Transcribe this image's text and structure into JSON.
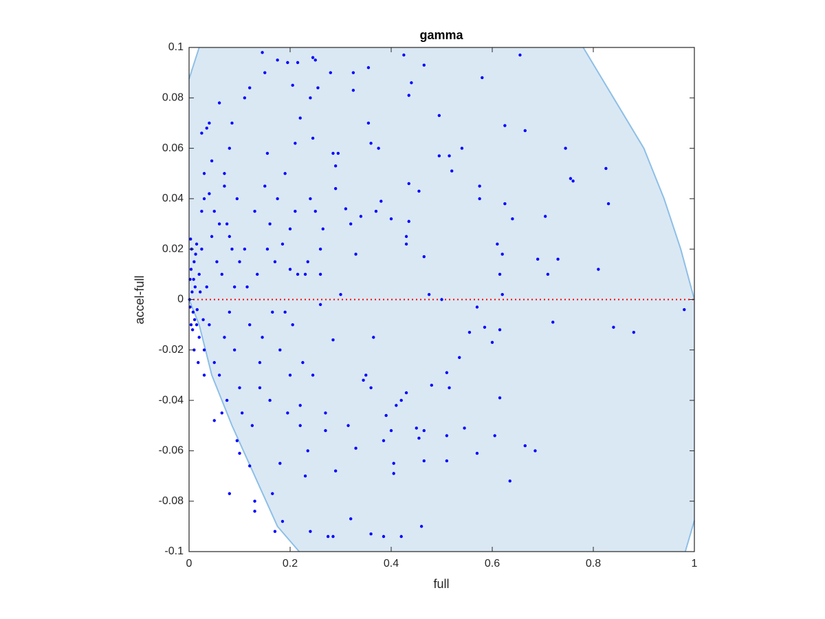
{
  "chart_data": {
    "type": "scatter",
    "title": "gamma",
    "xlabel": "full",
    "ylabel": "accel-full",
    "xlim": [
      0,
      1
    ],
    "ylim": [
      -0.1,
      0.1
    ],
    "xticks": [
      0,
      0.2,
      0.4,
      0.6,
      0.8,
      1
    ],
    "yticks": [
      -0.1,
      -0.08,
      -0.06,
      -0.04,
      -0.02,
      0,
      0.02,
      0.04,
      0.06,
      0.08,
      0.1
    ],
    "grid": false,
    "region": {
      "color": "#dae8f4",
      "edge_color": "#8dbfe6",
      "x": [
        0,
        0.02,
        0.78,
        0.84,
        0.9,
        0.94,
        0.973,
        1,
        1,
        0.982,
        0.218,
        0.175,
        0.13,
        0.085,
        0.045,
        0.02,
        0
      ],
      "y": [
        0.0875,
        0.1,
        0.1,
        0.08,
        0.06,
        0.04,
        0.02,
        0,
        -0.0877,
        -0.1,
        -0.1,
        -0.09,
        -0.07,
        -0.05,
        -0.03,
        -0.01,
        0
      ]
    },
    "reference_line": {
      "color": "#ff0000",
      "x": [
        0,
        1
      ],
      "y": [
        0,
        0
      ]
    },
    "series": [
      {
        "color": "#0000ff",
        "x": [
          0.98,
          0.88,
          0.84,
          0.81,
          0.83,
          0.825,
          0.76,
          0.755,
          0.745,
          0.73,
          0.71,
          0.705,
          0.72,
          0.69,
          0.685,
          0.665,
          0.665,
          0.655,
          0.64,
          0.635,
          0.625,
          0.625,
          0.62,
          0.615,
          0.61,
          0.62,
          0.605,
          0.615,
          0.615,
          0.6,
          0.58,
          0.575,
          0.575,
          0.57,
          0.57,
          0.585,
          0.545,
          0.555,
          0.54,
          0.52,
          0.535,
          0.515,
          0.51,
          0.515,
          0.51,
          0.51,
          0.5,
          0.495,
          0.495,
          0.48,
          0.475,
          0.465,
          0.465,
          0.465,
          0.465,
          0.46,
          0.455,
          0.455,
          0.45,
          0.44,
          0.435,
          0.435,
          0.435,
          0.43,
          0.43,
          0.425,
          0.43,
          0.42,
          0.42,
          0.41,
          0.405,
          0.405,
          0.4,
          0.4,
          0.39,
          0.385,
          0.385,
          0.38,
          0.375,
          0.37,
          0.365,
          0.36,
          0.36,
          0.36,
          0.355,
          0.35,
          0.355,
          0.345,
          0.34,
          0.33,
          0.33,
          0.325,
          0.325,
          0.32,
          0.315,
          0.32,
          0.31,
          0.3,
          0.295,
          0.29,
          0.29,
          0.285,
          0.28,
          0.275,
          0.285,
          0.29,
          0.285,
          0.27,
          0.27,
          0.265,
          0.26,
          0.26,
          0.25,
          0.255,
          0.245,
          0.245,
          0.24,
          0.24,
          0.24,
          0.235,
          0.23,
          0.22,
          0.22,
          0.215,
          0.21,
          0.205,
          0.2,
          0.2,
          0.195,
          0.19,
          0.185,
          0.18,
          0.175,
          0.17,
          0.165,
          0.16,
          0.155,
          0.15,
          0.145,
          0.14,
          0.13,
          0.13,
          0.12,
          0.12,
          0.11,
          0.1,
          0.095,
          0.08,
          0.085,
          0.08,
          0.075,
          0.07,
          0.06,
          0.05,
          0.045,
          0.04,
          0.035,
          0.03,
          0.025,
          0.03,
          0.005,
          0.01,
          0.008,
          0.012,
          0.015,
          0.02,
          0.02,
          0.025,
          0.03,
          0.035,
          0.04,
          0.045,
          0.05,
          0.055,
          0.06,
          0.065,
          0.07,
          0.075,
          0.08,
          0.085,
          0.09,
          0.095,
          0.1,
          0.11,
          0.12,
          0.13,
          0.14,
          0.15,
          0.16,
          0.17,
          0.18,
          0.19,
          0.2,
          0.21,
          0.22,
          0.23,
          0.003,
          0.004,
          0.006,
          0.002,
          0.01,
          0.015,
          0.018,
          0.025,
          0.03,
          0.04,
          0.05,
          0.06,
          0.065,
          0.07,
          0.08,
          0.09,
          0.1,
          0.105,
          0.115,
          0.125,
          0.135,
          0.145,
          0.155,
          0.165,
          0.175,
          0.185,
          0.195,
          0.205,
          0.215,
          0.225,
          0.235,
          0.245,
          0.25,
          0.26,
          0.001,
          0.002,
          0.004,
          0.007,
          0.009,
          0.011,
          0.013,
          0.016,
          0.022,
          0.028
        ],
        "values": [
          -0.004,
          -0.013,
          -0.011,
          0.012,
          0.038,
          0.052,
          0.047,
          0.048,
          0.06,
          0.016,
          0.01,
          0.033,
          -0.009,
          0.016,
          -0.06,
          -0.058,
          0.067,
          0.097,
          0.032,
          -0.072,
          0.069,
          0.038,
          0.018,
          0.01,
          0.022,
          0.002,
          -0.054,
          -0.039,
          -0.012,
          -0.017,
          0.088,
          0.045,
          0.04,
          -0.003,
          -0.061,
          -0.011,
          -0.051,
          -0.013,
          0.06,
          0.051,
          -0.023,
          0.057,
          -0.029,
          -0.035,
          -0.054,
          -0.064,
          0,
          0.073,
          0.057,
          -0.034,
          0.002,
          0.093,
          0.017,
          -0.052,
          -0.064,
          -0.09,
          0.043,
          -0.055,
          -0.051,
          0.086,
          0.081,
          0.046,
          0.031,
          0.022,
          0.025,
          0.097,
          -0.037,
          -0.04,
          -0.094,
          -0.042,
          -0.065,
          -0.069,
          0.032,
          -0.052,
          -0.046,
          -0.056,
          -0.094,
          0.039,
          0.06,
          0.035,
          -0.015,
          -0.035,
          0.062,
          -0.093,
          0.07,
          -0.03,
          0.092,
          -0.032,
          0.033,
          0.018,
          -0.059,
          0.09,
          0.083,
          0.03,
          -0.05,
          -0.087,
          0.036,
          0.002,
          0.058,
          0.053,
          0.044,
          0.058,
          0.09,
          -0.094,
          -0.094,
          -0.068,
          -0.016,
          -0.052,
          -0.045,
          0.028,
          0.02,
          -0.002,
          0.095,
          0.084,
          0.096,
          0.064,
          0.08,
          0.04,
          -0.092,
          -0.06,
          -0.07,
          -0.042,
          0.072,
          0.094,
          0.062,
          0.085,
          0.012,
          0.028,
          0.094,
          -0.005,
          -0.088,
          -0.065,
          0.095,
          -0.092,
          -0.077,
          0.03,
          0.058,
          0.09,
          0.098,
          -0.035,
          -0.08,
          -0.084,
          0.084,
          -0.066,
          0.08,
          -0.061,
          -0.056,
          -0.077,
          0.07,
          0.06,
          -0.04,
          0.05,
          0.078,
          -0.048,
          0.055,
          0.07,
          0.068,
          0.05,
          0.066,
          0.04,
          0.02,
          0.015,
          -0.005,
          0.005,
          -0.01,
          0.01,
          -0.015,
          0.02,
          -0.02,
          0.005,
          -0.01,
          0.025,
          -0.025,
          0.015,
          -0.03,
          0.01,
          -0.015,
          0.03,
          -0.005,
          0.02,
          -0.02,
          0.04,
          -0.035,
          0.02,
          -0.01,
          0.035,
          -0.025,
          0.045,
          -0.04,
          0.015,
          -0.02,
          0.05,
          -0.03,
          0.035,
          -0.05,
          0.01,
          0.024,
          -0.01,
          0.003,
          0.008,
          -0.02,
          0.022,
          -0.025,
          0.035,
          -0.03,
          0.042,
          0.035,
          0.03,
          -0.045,
          0.045,
          0.025,
          0.005,
          0.015,
          -0.045,
          0.005,
          -0.05,
          0.01,
          -0.015,
          0.02,
          -0.005,
          0.04,
          0.022,
          -0.045,
          -0.01,
          0.01,
          -0.025,
          0.015,
          -0.03,
          0.035,
          0.01,
          0,
          -0.003,
          0.012,
          -0.012,
          0.008,
          -0.008,
          0.018,
          -0.004,
          0.003,
          -0.008
        ]
      }
    ]
  }
}
